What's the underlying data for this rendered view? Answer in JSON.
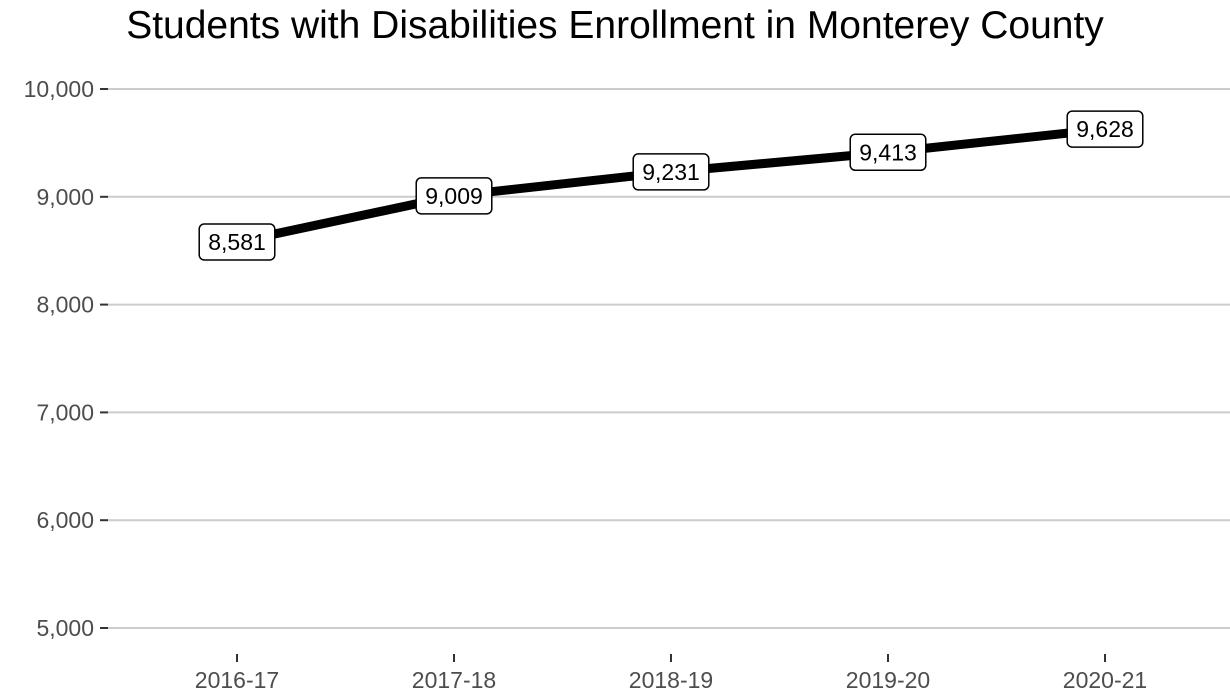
{
  "chart_data": {
    "type": "line",
    "title": "Students with Disabilities Enrollment in Monterey County",
    "xlabel": "",
    "ylabel": "",
    "categories": [
      "2016-17",
      "2017-18",
      "2018-19",
      "2019-20",
      "2020-21"
    ],
    "series": [
      {
        "values": [
          8581,
          9009,
          9231,
          9413,
          9628
        ],
        "data_labels": [
          "8,581",
          "9,009",
          "9,231",
          "9,413",
          "9,628"
        ],
        "color": "#000000"
      }
    ],
    "ylim": [
      5000,
      10000
    ],
    "yticks": [
      5000,
      6000,
      7000,
      8000,
      9000,
      10000
    ],
    "ytick_labels": [
      "5,000",
      "6,000",
      "7,000",
      "8,000",
      "9,000",
      "10,000"
    ],
    "grid": "horizontal major",
    "grid_color": "#cccccc",
    "legend": "none"
  }
}
